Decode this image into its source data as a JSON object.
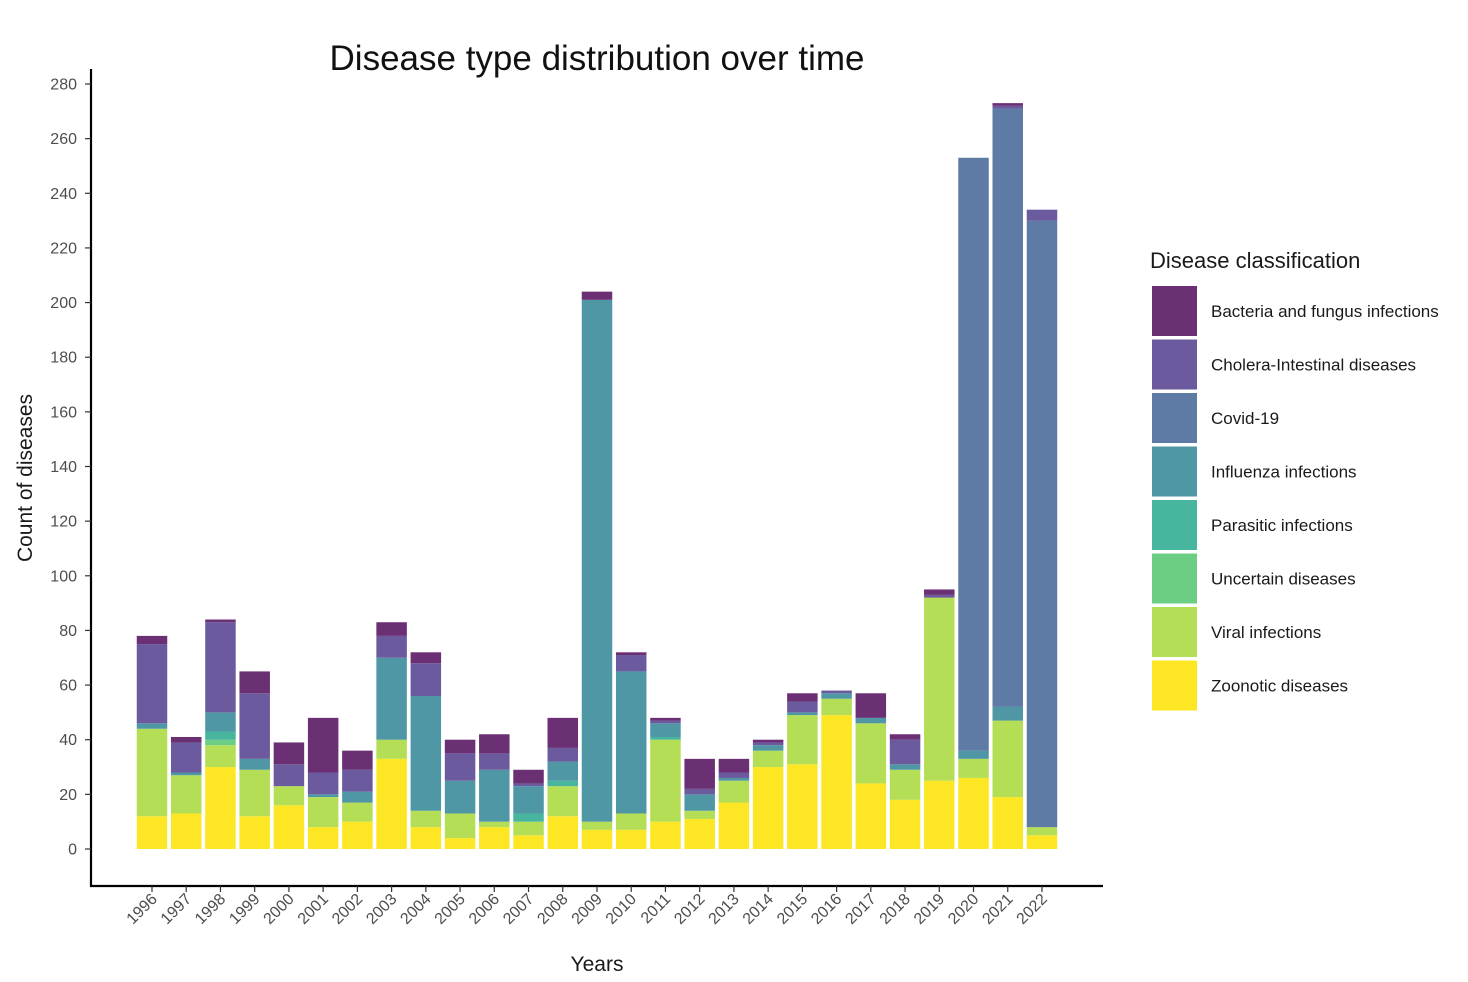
{
  "chart_data": {
    "type": "bar",
    "stacked": true,
    "title": "Disease type distribution over time",
    "xlabel": "Years",
    "ylabel": "Count of diseases",
    "ylim": [
      0,
      280
    ],
    "yticks": [
      0,
      20,
      40,
      60,
      80,
      100,
      120,
      140,
      160,
      180,
      200,
      220,
      240,
      260,
      280
    ],
    "grid": false,
    "legend": {
      "title": "Disease classification",
      "position": "right",
      "order": [
        "Bacteria and fungus infections",
        "Cholera-Intestinal diseases",
        "Covid-19",
        "Influenza infections",
        "Parasitic infections",
        "Uncertain diseases",
        "Viral infections",
        "Zoonotic diseases"
      ]
    },
    "categories": [
      "1996",
      "1997",
      "1998",
      "1999",
      "2000",
      "2001",
      "2002",
      "2003",
      "2004",
      "2005",
      "2006",
      "2007",
      "2008",
      "2009",
      "2010",
      "2011",
      "2012",
      "2013",
      "2014",
      "2015",
      "2016",
      "2017",
      "2018",
      "2019",
      "2020",
      "2021",
      "2022"
    ],
    "series": [
      {
        "name": "Zoonotic diseases",
        "color": "#FDE725",
        "values": [
          12,
          13,
          30,
          12,
          16,
          8,
          10,
          33,
          8,
          4,
          8,
          5,
          12,
          7,
          7,
          10,
          11,
          17,
          30,
          31,
          49,
          24,
          18,
          25,
          26,
          19,
          5
        ]
      },
      {
        "name": "Viral infections",
        "color": "#B5DE57",
        "values": [
          32,
          14,
          8,
          17,
          7,
          11,
          7,
          7,
          6,
          9,
          2,
          5,
          11,
          3,
          6,
          30,
          3,
          8,
          6,
          18,
          6,
          22,
          11,
          67,
          7,
          28,
          3
        ]
      },
      {
        "name": "Uncertain diseases",
        "color": "#6CCD84",
        "values": [
          0,
          0,
          2,
          0,
          0,
          0,
          0,
          0,
          0,
          0,
          0,
          0,
          0,
          0,
          0,
          0,
          0,
          0,
          0,
          0,
          0,
          0,
          0,
          0,
          0,
          0,
          0
        ]
      },
      {
        "name": "Parasitic infections",
        "color": "#48B59F",
        "values": [
          0,
          0,
          3,
          0,
          0,
          0,
          0,
          0,
          0,
          0,
          0,
          3,
          2,
          0,
          0,
          1,
          0,
          0,
          0,
          0,
          0,
          0,
          0,
          0,
          0,
          0,
          0
        ]
      },
      {
        "name": "Influenza infections",
        "color": "#5097A6",
        "values": [
          2,
          1,
          7,
          4,
          0,
          1,
          4,
          30,
          42,
          12,
          19,
          10,
          7,
          191,
          52,
          5,
          6,
          1,
          2,
          1,
          2,
          2,
          2,
          0,
          3,
          5,
          0
        ]
      },
      {
        "name": "Covid-19",
        "color": "#5E7BA6",
        "values": [
          0,
          0,
          0,
          0,
          0,
          0,
          0,
          0,
          0,
          0,
          0,
          0,
          0,
          0,
          0,
          0,
          0,
          0,
          0,
          0,
          0,
          0,
          0,
          0,
          217,
          219,
          222
        ]
      },
      {
        "name": "Cholera-Intestinal diseases",
        "color": "#6B5A9E",
        "values": [
          29,
          11,
          33,
          24,
          8,
          8,
          8,
          8,
          12,
          10,
          6,
          1,
          5,
          0,
          6,
          1,
          2,
          2,
          1,
          4,
          1,
          0,
          9,
          1,
          0,
          1,
          4
        ]
      },
      {
        "name": "Bacteria and fungus infections",
        "color": "#6A3073",
        "values": [
          3,
          2,
          1,
          8,
          8,
          20,
          7,
          5,
          4,
          5,
          7,
          5,
          11,
          3,
          1,
          1,
          11,
          5,
          1,
          3,
          0,
          9,
          2,
          2,
          0,
          1,
          0
        ]
      }
    ]
  }
}
